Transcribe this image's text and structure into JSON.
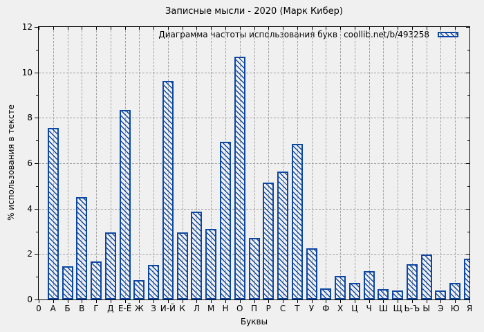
{
  "window": {
    "background": "#f0f0f0"
  },
  "chart_data": {
    "type": "bar",
    "title": "Записные мысли - 2020 (Марк Кибер)",
    "legend": {
      "label": "Диаграмма частоты использования букв",
      "source": "coollib.net/b/493258",
      "position": "top-right-inside",
      "swatch": "blue-diagonal-hatch"
    },
    "xlabel": "Буквы",
    "ylabel": "% использования в тексте",
    "x_origin_label": "0",
    "ylim": [
      0,
      12
    ],
    "yticks": [
      0,
      2,
      4,
      6,
      8,
      10,
      12
    ],
    "grid": true,
    "categories": [
      "А",
      "Б",
      "В",
      "Г",
      "Д",
      "Е-Ё",
      "Ж",
      "З",
      "И-Й",
      "К",
      "Л",
      "М",
      "Н",
      "О",
      "П",
      "Р",
      "С",
      "Т",
      "У",
      "Ф",
      "Х",
      "Ц",
      "Ч",
      "Ш",
      "Щ",
      "Ь-Ъ",
      "Ы",
      "Э",
      "Ю",
      "Я"
    ],
    "values": [
      7.55,
      1.47,
      4.52,
      1.67,
      2.95,
      8.35,
      0.84,
      1.52,
      9.62,
      2.95,
      3.86,
      3.12,
      6.93,
      10.68,
      2.71,
      5.16,
      5.62,
      6.84,
      2.24,
      0.48,
      1.03,
      0.72,
      1.24,
      0.47,
      0.4,
      1.56,
      1.97,
      0.39,
      0.72,
      1.8
    ],
    "bar_style": "diagonal-hatch",
    "colors": {
      "bar": "#0d47a1",
      "grid": "#a0a0a0",
      "axis": "#000000",
      "background": "#f0f0f0",
      "text": "#000000"
    }
  }
}
